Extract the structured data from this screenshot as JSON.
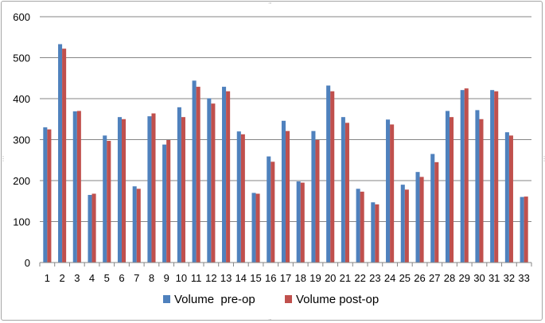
{
  "chart_data": {
    "type": "bar",
    "title": "",
    "xlabel": "",
    "ylabel": "",
    "ylim": [
      0,
      600
    ],
    "yticks": [
      0,
      100,
      200,
      300,
      400,
      500,
      600
    ],
    "grid": true,
    "legend_position": "bottom",
    "categories": [
      "1",
      "2",
      "3",
      "4",
      "5",
      "6",
      "7",
      "8",
      "9",
      "10",
      "11",
      "12",
      "13",
      "14",
      "15",
      "16",
      "17",
      "18",
      "19",
      "20",
      "21",
      "22",
      "23",
      "24",
      "25",
      "26",
      "27",
      "28",
      "29",
      "30",
      "31",
      "32",
      "33"
    ],
    "series": [
      {
        "name": "Volume  pre-op",
        "color": "#4f81bd",
        "values": [
          330,
          533,
          369,
          165,
          310,
          355,
          186,
          357,
          288,
          379,
          444,
          401,
          429,
          320,
          170,
          259,
          346,
          198,
          321,
          432,
          355,
          180,
          147,
          349,
          190,
          221,
          265,
          370,
          421,
          372,
          421,
          318,
          160
        ]
      },
      {
        "name": "Volume post-op",
        "color": "#c0504d",
        "values": [
          325,
          522,
          370,
          168,
          297,
          350,
          180,
          364,
          299,
          355,
          429,
          388,
          418,
          313,
          168,
          246,
          321,
          195,
          299,
          418,
          341,
          173,
          142,
          337,
          178,
          209,
          245,
          355,
          425,
          350,
          418,
          310,
          161
        ]
      }
    ]
  }
}
